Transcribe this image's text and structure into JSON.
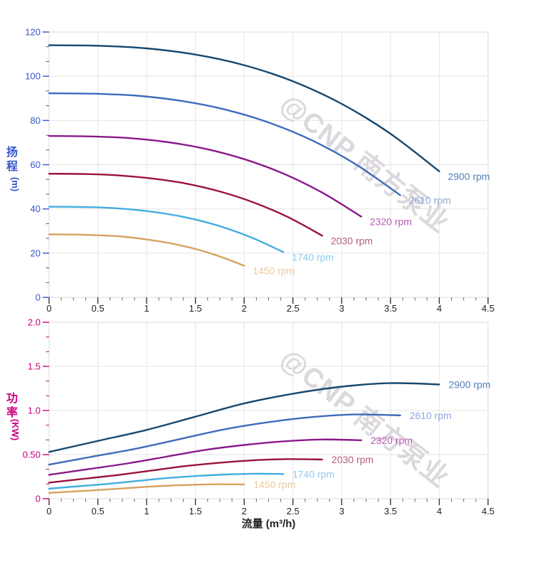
{
  "chart_data": {
    "type": "line",
    "x_axis": {
      "title": "流量 (m³/h)",
      "min": 0,
      "max": 4.5,
      "major_ticks": [
        0,
        0.5,
        1,
        1.5,
        2,
        2.5,
        3,
        3.5,
        4,
        4.5
      ],
      "tick_labels": [
        "0",
        "0.5",
        "1",
        "1.5",
        "2",
        "2.5",
        "3",
        "3.5",
        "4",
        "4.5"
      ],
      "minor_step": 0.125,
      "tick_color": "#333333",
      "label_color": "#222222",
      "grid": true
    },
    "charts": [
      {
        "id": "head",
        "y_title_chars": [
          "扬",
          "程"
        ],
        "y_unit": "(m)",
        "axis_color": "#3355cc",
        "y_min": 0,
        "y_max": 120,
        "y_major_ticks": [
          0,
          20,
          40,
          60,
          80,
          100,
          120
        ],
        "y_tick_labels": [
          "0",
          "20",
          "40",
          "60",
          "80",
          "100",
          "120"
        ],
        "y_minor_per_major": 2,
        "grid": true,
        "series": [
          {
            "name": "2900 rpm",
            "rpm": 2900,
            "color": "#17486F",
            "label_color": "#5580BB",
            "points": [
              [
                0,
                114
              ],
              [
                0.5,
                113.8
              ],
              [
                1,
                112.6
              ],
              [
                1.5,
                109.8
              ],
              [
                2,
                105
              ],
              [
                2.5,
                97.7
              ],
              [
                3,
                87.5
              ],
              [
                3.5,
                74
              ],
              [
                4,
                57
              ]
            ]
          },
          {
            "name": "2610 rpm",
            "rpm": 2610,
            "color": "#3E6BBB",
            "label_color": "#8FA8D8",
            "points": [
              [
                0,
                92.3
              ],
              [
                0.45,
                92.1
              ],
              [
                0.9,
                91.2
              ],
              [
                1.35,
                88.9
              ],
              [
                1.8,
                85
              ],
              [
                2.25,
                79.1
              ],
              [
                2.7,
                70.9
              ],
              [
                3.15,
                60
              ],
              [
                3.6,
                46.2
              ]
            ]
          },
          {
            "name": "2320 rpm",
            "rpm": 2320,
            "color": "#8A1A8A",
            "label_color": "#B55CB5",
            "points": [
              [
                0,
                73
              ],
              [
                0.4,
                72.8
              ],
              [
                0.8,
                72.1
              ],
              [
                1.2,
                70.3
              ],
              [
                1.6,
                67.2
              ],
              [
                2,
                62.5
              ],
              [
                2.4,
                56
              ],
              [
                2.8,
                47.4
              ],
              [
                3.2,
                36.5
              ]
            ]
          },
          {
            "name": "2030 rpm",
            "rpm": 2030,
            "color": "#9A1438",
            "label_color": "#B4607A",
            "points": [
              [
                0,
                55.9
              ],
              [
                0.35,
                55.8
              ],
              [
                0.7,
                55.2
              ],
              [
                1.05,
                53.8
              ],
              [
                1.4,
                51.5
              ],
              [
                1.75,
                47.9
              ],
              [
                2.1,
                42.9
              ],
              [
                2.45,
                36.3
              ],
              [
                2.8,
                27.9
              ]
            ]
          },
          {
            "name": "1740 rpm",
            "rpm": 1740,
            "color": "#41ACDF",
            "label_color": "#8ECCEF",
            "points": [
              [
                0,
                41
              ],
              [
                0.3,
                40.9
              ],
              [
                0.6,
                40.5
              ],
              [
                0.9,
                39.5
              ],
              [
                1.2,
                37.8
              ],
              [
                1.5,
                35.2
              ],
              [
                1.8,
                31.5
              ],
              [
                2.1,
                26.6
              ],
              [
                2.4,
                20.5
              ]
            ]
          },
          {
            "name": "1450 rpm",
            "rpm": 1450,
            "color": "#D8A15E",
            "label_color": "#E9C9A0",
            "points": [
              [
                0,
                28.5
              ],
              [
                0.25,
                28.4
              ],
              [
                0.5,
                28.1
              ],
              [
                0.75,
                27.5
              ],
              [
                1,
                26.2
              ],
              [
                1.25,
                24.4
              ],
              [
                1.5,
                21.9
              ],
              [
                1.75,
                18.5
              ],
              [
                2,
                14.3
              ]
            ]
          }
        ]
      },
      {
        "id": "power",
        "y_title_chars": [
          "功",
          "率"
        ],
        "y_unit": "(KW)",
        "axis_color": "#C8007E",
        "y_min": 0,
        "y_max": 2,
        "y_major_ticks": [
          0,
          0.5,
          1,
          1.5,
          2
        ],
        "y_tick_labels": [
          "0",
          "0.50",
          "1.0",
          "1.5",
          "2.0"
        ],
        "y_minor_per_major": 2,
        "grid": true,
        "series": [
          {
            "name": "2900 rpm",
            "rpm": 2900,
            "color": "#17486F",
            "label_color": "#5580BB",
            "points": [
              [
                0,
                0.53
              ],
              [
                0.5,
                0.655
              ],
              [
                1,
                0.78
              ],
              [
                1.5,
                0.93
              ],
              [
                2,
                1.08
              ],
              [
                2.5,
                1.19
              ],
              [
                3,
                1.27
              ],
              [
                3.5,
                1.31
              ],
              [
                4,
                1.295
              ]
            ]
          },
          {
            "name": "2610 rpm",
            "rpm": 2610,
            "color": "#3E6BBB",
            "label_color": "#8FA8D8",
            "points": [
              [
                0,
                0.386
              ],
              [
                0.45,
                0.478
              ],
              [
                0.9,
                0.569
              ],
              [
                1.35,
                0.678
              ],
              [
                1.8,
                0.787
              ],
              [
                2.25,
                0.868
              ],
              [
                2.7,
                0.926
              ],
              [
                3.15,
                0.955
              ],
              [
                3.6,
                0.944
              ]
            ]
          },
          {
            "name": "2320 rpm",
            "rpm": 2320,
            "color": "#8A1A8A",
            "label_color": "#B55CB5",
            "points": [
              [
                0,
                0.271
              ],
              [
                0.4,
                0.335
              ],
              [
                0.8,
                0.399
              ],
              [
                1.2,
                0.476
              ],
              [
                1.6,
                0.553
              ],
              [
                2,
                0.609
              ],
              [
                2.4,
                0.65
              ],
              [
                2.8,
                0.671
              ],
              [
                3.2,
                0.663
              ]
            ]
          },
          {
            "name": "2030 rpm",
            "rpm": 2030,
            "color": "#9A1438",
            "label_color": "#B4607A",
            "points": [
              [
                0,
                0.182
              ],
              [
                0.35,
                0.225
              ],
              [
                0.7,
                0.268
              ],
              [
                1.05,
                0.319
              ],
              [
                1.4,
                0.37
              ],
              [
                1.75,
                0.408
              ],
              [
                2.1,
                0.436
              ],
              [
                2.45,
                0.449
              ],
              [
                2.8,
                0.444
              ]
            ]
          },
          {
            "name": "1740 rpm",
            "rpm": 1740,
            "color": "#41ACDF",
            "label_color": "#8ECCEF",
            "points": [
              [
                0,
                0.114
              ],
              [
                0.3,
                0.141
              ],
              [
                0.6,
                0.168
              ],
              [
                0.9,
                0.201
              ],
              [
                1.2,
                0.233
              ],
              [
                1.5,
                0.257
              ],
              [
                1.8,
                0.274
              ],
              [
                2.1,
                0.283
              ],
              [
                2.4,
                0.28
              ]
            ]
          },
          {
            "name": "1450 rpm",
            "rpm": 1450,
            "color": "#D8A15E",
            "label_color": "#E9C9A0",
            "points": [
              [
                0,
                0.066
              ],
              [
                0.25,
                0.082
              ],
              [
                0.5,
                0.098
              ],
              [
                0.75,
                0.116
              ],
              [
                1,
                0.135
              ],
              [
                1.25,
                0.149
              ],
              [
                1.5,
                0.159
              ],
              [
                1.75,
                0.164
              ],
              [
                2,
                0.162
              ]
            ]
          }
        ]
      }
    ],
    "style": {
      "grid_color": "#e4e4e4",
      "border_color": "#d9d9d9",
      "background": "#ffffff"
    }
  },
  "watermark": {
    "text": "@CNP 南方泵业",
    "color": "#dcd8dd"
  }
}
